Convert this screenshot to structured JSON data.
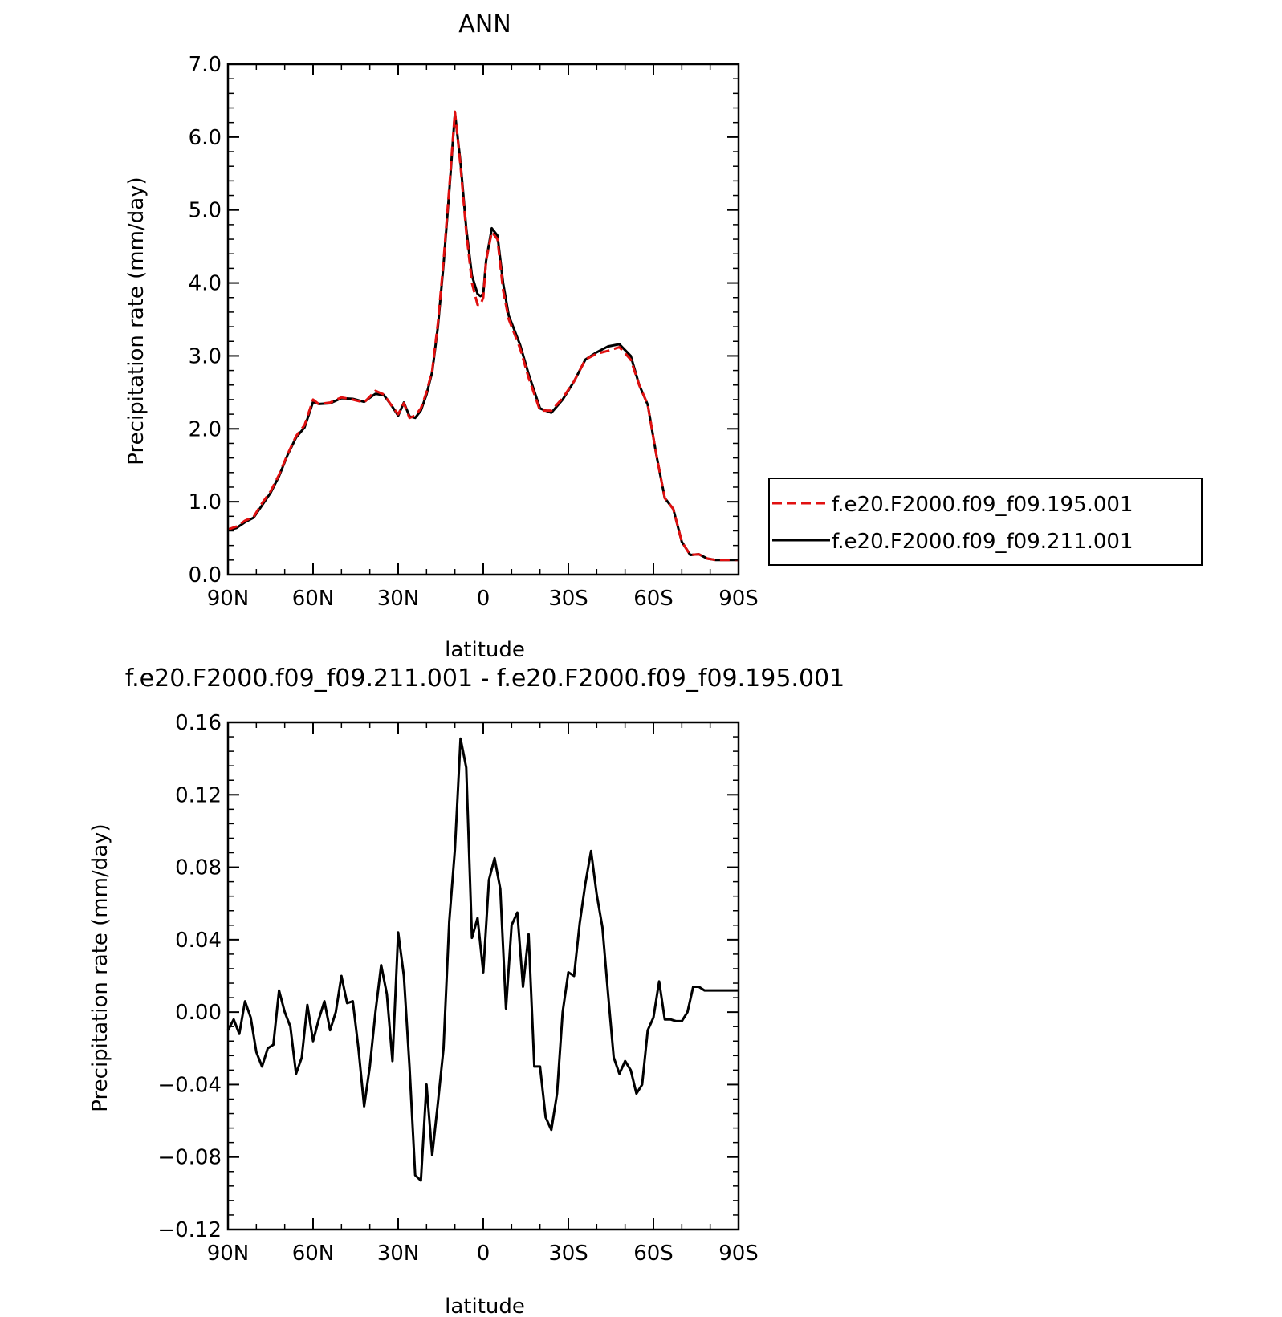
{
  "chart_data": [
    {
      "type": "line",
      "title": "ANN",
      "xlabel": "latitude",
      "ylabel": "Precipitation rate (mm/day)",
      "xlim": [
        90,
        -90
      ],
      "ylim": [
        0.0,
        7.0
      ],
      "x_ticks": [
        90,
        60,
        30,
        0,
        -30,
        -60,
        -90
      ],
      "x_tick_labels": [
        "90N",
        "60N",
        "30N",
        "0",
        "30S",
        "60S",
        "90S"
      ],
      "y_ticks": [
        0,
        1,
        2,
        3,
        4,
        5,
        6,
        7
      ],
      "y_tick_labels": [
        "0.0",
        "1.0",
        "2.0",
        "3.0",
        "4.0",
        "5.0",
        "6.0",
        "7.0"
      ],
      "legend_placement": "right",
      "series": [
        {
          "name": "f.e20.F2000.f09_f09.195.001",
          "color": "#e01010",
          "dash": "dashed",
          "x": [
            90,
            87,
            84,
            81,
            78,
            75,
            72,
            69,
            66,
            63,
            60,
            58,
            54,
            50,
            46,
            42,
            38,
            35,
            32,
            30,
            28,
            26,
            24,
            22,
            20,
            18,
            16,
            14,
            12,
            10,
            8,
            6,
            4,
            2,
            1,
            0,
            -1,
            -3,
            -5,
            -7,
            -9,
            -11,
            -13,
            -16,
            -20,
            -24,
            -28,
            -32,
            -36,
            -40,
            -44,
            -48,
            -52,
            -55,
            -58,
            -61,
            -64,
            -67,
            -70,
            -73,
            -76,
            -79,
            -82,
            -85,
            -87,
            -90
          ],
          "y": [
            0.62,
            0.66,
            0.74,
            0.79,
            0.98,
            1.14,
            1.37,
            1.65,
            1.9,
            2.05,
            2.4,
            2.34,
            2.36,
            2.43,
            2.4,
            2.36,
            2.52,
            2.47,
            2.3,
            2.2,
            2.35,
            2.15,
            2.18,
            2.28,
            2.5,
            2.8,
            3.45,
            4.3,
            5.3,
            6.35,
            5.6,
            4.7,
            4.0,
            3.7,
            3.7,
            3.8,
            4.3,
            4.7,
            4.6,
            3.9,
            3.5,
            3.3,
            3.1,
            2.7,
            2.25,
            2.25,
            2.42,
            2.65,
            2.95,
            3.03,
            3.07,
            3.12,
            2.95,
            2.6,
            2.33,
            1.65,
            1.05,
            0.9,
            0.45,
            0.27,
            0.28,
            0.22,
            0.2,
            0.2,
            0.2,
            0.2
          ]
        },
        {
          "name": "f.e20.F2000.f09_f09.211.001",
          "color": "#000000",
          "dash": "solid",
          "x": [
            90,
            87,
            84,
            81,
            78,
            75,
            72,
            69,
            66,
            63,
            60,
            58,
            54,
            50,
            46,
            42,
            38,
            35,
            32,
            30,
            28,
            26,
            24,
            22,
            20,
            18,
            16,
            14,
            12,
            10,
            8,
            6,
            4,
            2,
            1,
            0,
            -1,
            -3,
            -5,
            -7,
            -9,
            -11,
            -13,
            -16,
            -20,
            -24,
            -28,
            -32,
            -36,
            -40,
            -44,
            -48,
            -52,
            -55,
            -58,
            -61,
            -64,
            -67,
            -70,
            -73,
            -76,
            -79,
            -82,
            -85,
            -87,
            -90
          ],
          "y": [
            0.61,
            0.64,
            0.72,
            0.78,
            0.95,
            1.12,
            1.35,
            1.64,
            1.88,
            2.02,
            2.37,
            2.34,
            2.35,
            2.42,
            2.41,
            2.37,
            2.48,
            2.46,
            2.3,
            2.18,
            2.36,
            2.17,
            2.15,
            2.25,
            2.47,
            2.78,
            3.4,
            4.25,
            5.25,
            6.33,
            5.65,
            4.75,
            4.1,
            3.85,
            3.82,
            3.85,
            4.3,
            4.75,
            4.65,
            4.0,
            3.55,
            3.35,
            3.15,
            2.75,
            2.28,
            2.22,
            2.4,
            2.65,
            2.95,
            3.05,
            3.13,
            3.16,
            3.0,
            2.6,
            2.33,
            1.65,
            1.05,
            0.9,
            0.45,
            0.27,
            0.28,
            0.22,
            0.2,
            0.2,
            0.2,
            0.2
          ]
        }
      ]
    },
    {
      "type": "line",
      "title": "f.e20.F2000.f09_f09.211.001 - f.e20.F2000.f09_f09.195.001",
      "xlabel": "latitude",
      "ylabel": "Precipitation rate (mm/day)",
      "xlim": [
        90,
        -90
      ],
      "ylim": [
        -0.12,
        0.16
      ],
      "x_ticks": [
        90,
        60,
        30,
        0,
        -30,
        -60,
        -90
      ],
      "x_tick_labels": [
        "90N",
        "60N",
        "30N",
        "0",
        "30S",
        "60S",
        "90S"
      ],
      "y_ticks": [
        -0.12,
        -0.08,
        -0.04,
        0.0,
        0.04,
        0.08,
        0.12,
        0.16
      ],
      "y_tick_labels": [
        "−0.12",
        "−0.08",
        "−0.04",
        "0.00",
        "0.04",
        "0.08",
        "0.12",
        "0.16"
      ],
      "series": [
        {
          "color": "#000000",
          "dash": "solid",
          "x": [
            90,
            88,
            86,
            84,
            82,
            80,
            78,
            76,
            74,
            72,
            70,
            68,
            66,
            64,
            62,
            60,
            58,
            56,
            54,
            52,
            50,
            48,
            46,
            44,
            42,
            40,
            38,
            36,
            34,
            32,
            30,
            28,
            26,
            24,
            22,
            20,
            18,
            16,
            14,
            12,
            10,
            8,
            6,
            4,
            2,
            0,
            -2,
            -4,
            -6,
            -8,
            -10,
            -12,
            -14,
            -16,
            -18,
            -20,
            -22,
            -24,
            -26,
            -28,
            -30,
            -32,
            -34,
            -36,
            -38,
            -40,
            -42,
            -44,
            -46,
            -48,
            -50,
            -52,
            -54,
            -56,
            -58,
            -60,
            -62,
            -64,
            -66,
            -68,
            -70,
            -72,
            -74,
            -76,
            -78,
            -80,
            -82,
            -84,
            -86,
            -88,
            -90
          ],
          "y": [
            -0.01,
            -0.004,
            -0.012,
            0.006,
            -0.003,
            -0.022,
            -0.03,
            -0.02,
            -0.018,
            0.012,
            0.0,
            -0.008,
            -0.034,
            -0.025,
            0.004,
            -0.016,
            -0.004,
            0.006,
            -0.01,
            0.0,
            0.02,
            0.005,
            0.006,
            -0.02,
            -0.052,
            -0.03,
            0.0,
            0.026,
            0.01,
            -0.027,
            0.044,
            0.02,
            -0.03,
            -0.09,
            -0.093,
            -0.04,
            -0.079,
            -0.05,
            -0.02,
            0.05,
            0.09,
            0.151,
            0.135,
            0.041,
            0.052,
            0.022,
            0.073,
            0.085,
            0.068,
            0.002,
            0.048,
            0.055,
            0.014,
            0.043,
            -0.03,
            -0.03,
            -0.058,
            -0.065,
            -0.045,
            0.0,
            0.022,
            0.02,
            0.049,
            0.071,
            0.089,
            0.065,
            0.047,
            0.01,
            -0.025,
            -0.034,
            -0.027,
            -0.032,
            -0.045,
            -0.04,
            -0.01,
            -0.003,
            0.017,
            -0.004,
            -0.004,
            -0.005,
            -0.005,
            0.0,
            0.014,
            0.014,
            0.012,
            0.012,
            0.012,
            0.012,
            0.012,
            0.012,
            0.012
          ]
        }
      ]
    }
  ]
}
